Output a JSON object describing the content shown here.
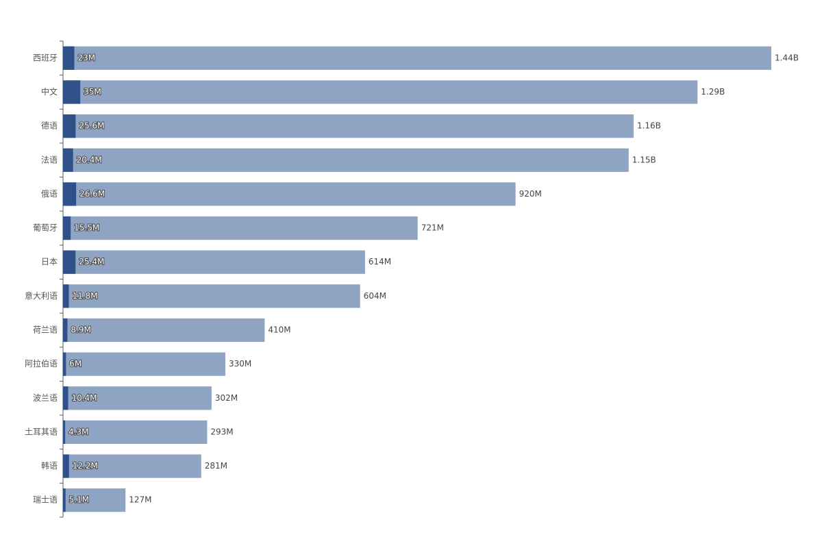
{
  "chart_data": {
    "type": "bar",
    "orientation": "horizontal",
    "overlap": true,
    "categories": [
      "西班牙",
      "中文",
      "德语",
      "法语",
      "俄语",
      "葡萄牙",
      "日本",
      "意大利语",
      "荷兰语",
      "阿拉伯语",
      "波兰语",
      "土耳其语",
      "韩语",
      "瑞士语"
    ],
    "xlim": [
      0,
      1440000000
    ],
    "series": [
      {
        "color": "#8fa3c2",
        "values": [
          1440000000,
          1290000000,
          1160000000,
          1150000000,
          920000000,
          721000000,
          614000000,
          604000000,
          410000000,
          330000000,
          302000000,
          293000000,
          281000000,
          127000000
        ],
        "value_labels": [
          "1.44B",
          "1.29B",
          "1.16B",
          "1.15B",
          "920M",
          "721M",
          "614M",
          "604M",
          "410M",
          "330M",
          "302M",
          "293M",
          "281M",
          "127M"
        ]
      },
      {
        "color": "#2f5189",
        "values": [
          23000000,
          35000000,
          25600000,
          20400000,
          26600000,
          15500000,
          25400000,
          11800000,
          8900000,
          6000000,
          10400000,
          4300000,
          12200000,
          5100000
        ],
        "value_labels": [
          "23M",
          "35M",
          "25.6M",
          "20.4M",
          "26.6M",
          "15.5M",
          "25.4M",
          "11.8M",
          "8.9M",
          "6M",
          "10.4M",
          "4.3M",
          "12.2M",
          "5.1M"
        ]
      }
    ]
  }
}
